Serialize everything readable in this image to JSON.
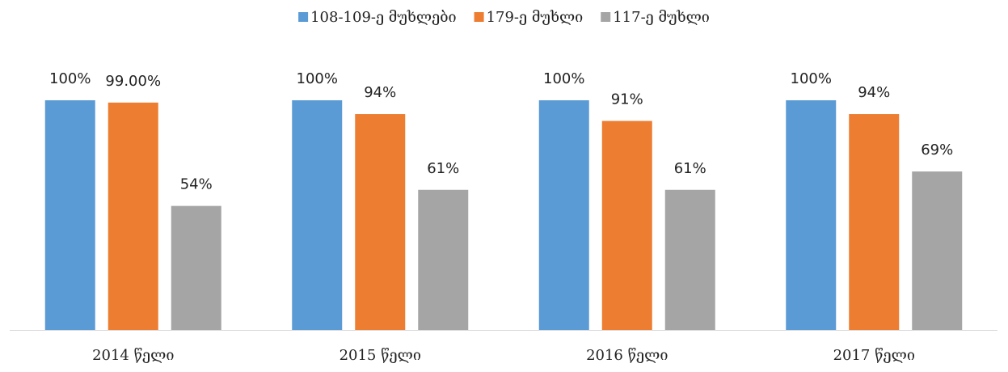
{
  "chart_data": {
    "type": "bar",
    "categories": [
      "2014 წელი",
      "2015 წელი",
      "2016 წელი",
      "2017 წელი"
    ],
    "series": [
      {
        "name": "108-109-ე მუხლები",
        "color": "#5b9bd5",
        "values": [
          100,
          100,
          100,
          100
        ],
        "value_labels": [
          "100%",
          "100%",
          "100%",
          "100%"
        ]
      },
      {
        "name": "179-ე მუხლი",
        "color": "#ed7d31",
        "values": [
          99,
          94,
          91,
          94
        ],
        "value_labels": [
          "99.00%",
          "94%",
          "91%",
          "94%"
        ]
      },
      {
        "name": "117-ე მუხლი",
        "color": "#a5a5a5",
        "values": [
          54,
          61,
          61,
          69
        ],
        "value_labels": [
          "54%",
          "61%",
          "61%",
          "69%"
        ]
      }
    ],
    "legend": "top"
  }
}
